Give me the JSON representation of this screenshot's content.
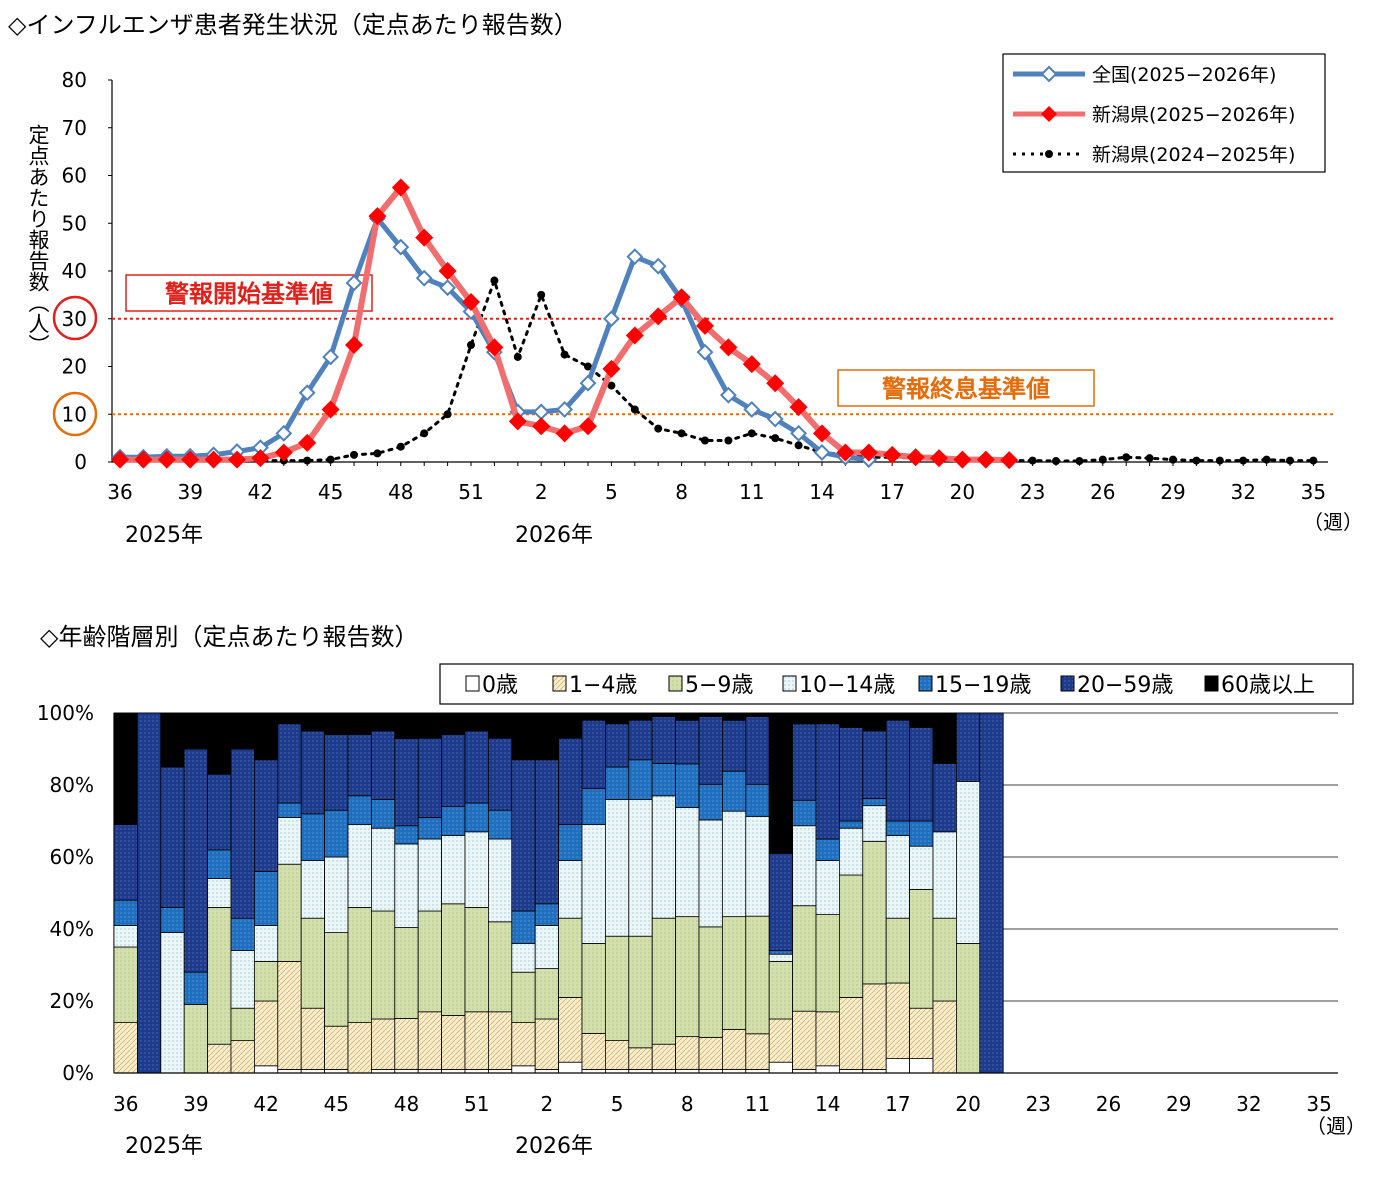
{
  "chart1": {
    "title": "◇インフルエンザ患者発生状況（定点あたり報告数）",
    "ylabel": "定点あたり報告数（人）",
    "y_ticks": [
      "0",
      "10",
      "20",
      "30",
      "40",
      "50",
      "60",
      "70",
      "80"
    ],
    "ylim": [
      0,
      80
    ],
    "x_tick_labels": [
      "36",
      "39",
      "42",
      "45",
      "48",
      "51",
      "2",
      "5",
      "8",
      "11",
      "14",
      "17",
      "20",
      "23",
      "26",
      "29",
      "32",
      "35"
    ],
    "x_unit": "（週）",
    "year_labels": [
      "2025年",
      "2026年"
    ],
    "alarm_start_label": "警報開始基準値",
    "alarm_end_label": "警報終息基準値",
    "alarm_start_value": 30,
    "alarm_end_value": 10,
    "colors": {
      "national": "#4f81bd",
      "niigata": "#f26d6d",
      "niigata_marker": "#ff0000",
      "prev": "#000000",
      "alarm_start": "#e0201b",
      "alarm_end": "#e46c0a"
    }
  },
  "chart1_data": {
    "type": "line",
    "x_weeks": [
      "36",
      "37",
      "38",
      "39",
      "40",
      "41",
      "42",
      "43",
      "44",
      "45",
      "46",
      "47",
      "48",
      "49",
      "50",
      "51",
      "52",
      "1",
      "2",
      "3",
      "4",
      "5",
      "6",
      "7",
      "8",
      "9",
      "10",
      "11",
      "12",
      "13",
      "14",
      "15",
      "16",
      "17",
      "18",
      "19",
      "20",
      "21",
      "22",
      "23",
      "24",
      "25",
      "26",
      "27",
      "28",
      "29",
      "30",
      "31",
      "32",
      "33",
      "34",
      "35"
    ],
    "series": [
      {
        "name": "全国(2025−2026年)",
        "values": [
          1.0,
          1.0,
          1.2,
          1.2,
          1.5,
          2.2,
          3.0,
          6.0,
          14.5,
          22.0,
          37.5,
          51.0,
          45.0,
          38.5,
          36.5,
          31.5,
          23.0,
          10.5,
          10.5,
          11.0,
          16.5,
          30.0,
          43.0,
          41.0,
          34.0,
          23.0,
          14.0,
          11.0,
          9.0,
          6.0,
          2.0,
          1.0,
          0.5,
          null,
          null,
          null,
          null,
          null,
          null,
          null,
          null,
          null,
          null,
          null,
          null,
          null,
          null,
          null,
          null,
          null,
          null,
          null
        ]
      },
      {
        "name": "新潟県(2025−2026年)",
        "values": [
          0.5,
          0.5,
          0.5,
          0.5,
          0.5,
          0.5,
          0.8,
          2.0,
          4.0,
          11.0,
          24.5,
          51.5,
          57.5,
          47.0,
          40.0,
          33.5,
          24.0,
          8.5,
          7.5,
          6.0,
          7.5,
          19.5,
          26.5,
          30.5,
          34.5,
          28.5,
          24.0,
          20.5,
          16.5,
          11.5,
          6.0,
          2.0,
          2.0,
          1.5,
          1.0,
          0.8,
          0.5,
          0.5,
          0.4,
          null,
          null,
          null,
          null,
          null,
          null,
          null,
          null,
          null,
          null,
          null,
          null,
          null
        ]
      },
      {
        "name": "新潟県(2024−2025年)",
        "values": [
          0.3,
          0.3,
          0.3,
          0.3,
          0.3,
          0.3,
          0.3,
          0.3,
          0.3,
          0.5,
          1.5,
          1.8,
          3.2,
          6.0,
          10.0,
          24.5,
          38.0,
          22.0,
          35.0,
          22.5,
          20.0,
          16.0,
          11.0,
          7.0,
          6.0,
          4.5,
          4.5,
          6.0,
          5.0,
          3.5,
          2.0,
          1.5,
          1.0,
          1.0,
          0.8,
          0.8,
          0.5,
          0.5,
          0.3,
          0.3,
          0.2,
          0.2,
          0.5,
          1.0,
          0.8,
          0.5,
          0.3,
          0.3,
          0.3,
          0.5,
          0.3,
          0.3
        ]
      }
    ]
  },
  "chart2": {
    "title": "◇年齢階層別（定点あたり報告数）",
    "y_ticks": [
      "0%",
      "20%",
      "40%",
      "60%",
      "80%",
      "100%"
    ],
    "x_tick_labels": [
      "36",
      "39",
      "42",
      "45",
      "48",
      "51",
      "2",
      "5",
      "8",
      "11",
      "14",
      "17",
      "20",
      "23",
      "26",
      "29",
      "32",
      "35"
    ],
    "x_unit": "（週）",
    "year_labels": [
      "2025年",
      "2026年"
    ]
  },
  "chart2_data": {
    "type": "bar",
    "stacked": "percent",
    "categories": [
      "36",
      "37",
      "38",
      "39",
      "40",
      "41",
      "42",
      "43",
      "44",
      "45",
      "46",
      "47",
      "48",
      "49",
      "50",
      "51",
      "52",
      "1",
      "2",
      "3",
      "4",
      "5",
      "6",
      "7",
      "8",
      "9",
      "10",
      "11",
      "12",
      "13",
      "14",
      "15",
      "16",
      "17",
      "18",
      "19",
      "20",
      "21",
      "22",
      "23",
      "24",
      "25",
      "26",
      "27",
      "28",
      "29",
      "30",
      "31",
      "32",
      "33",
      "34",
      "35"
    ],
    "ylim": [
      0,
      100
    ],
    "series": [
      {
        "name": "0歳",
        "color": "#ffffff",
        "values": [
          0,
          0,
          0,
          0,
          0,
          0,
          2,
          1,
          1,
          1,
          0,
          1,
          1,
          1,
          1,
          1,
          1,
          2,
          1,
          3,
          1,
          1,
          1,
          1,
          1,
          1,
          1,
          1,
          3,
          1,
          2,
          1,
          1,
          4,
          4,
          0,
          0,
          0
        ]
      },
      {
        "name": "1−4歳",
        "color": "#fbeecb",
        "values": [
          14,
          0,
          0,
          0,
          8,
          9,
          18,
          30,
          17,
          12,
          14,
          14,
          14,
          16,
          15,
          16,
          16,
          12,
          14,
          18,
          10,
          8,
          6,
          7,
          9,
          9,
          11,
          10,
          12,
          16,
          15,
          20,
          24,
          21,
          14,
          20,
          0,
          0
        ]
      },
      {
        "name": "5−9歳",
        "color": "#d6e3b3",
        "values": [
          21,
          0,
          0,
          19,
          38,
          9,
          11,
          27,
          25,
          26,
          32,
          30,
          25,
          28,
          31,
          29,
          25,
          14,
          14,
          22,
          25,
          29,
          31,
          35,
          33,
          31,
          31,
          33,
          16,
          29,
          27,
          34,
          40,
          18,
          33,
          23,
          36,
          0
        ]
      },
      {
        "name": "10−14歳",
        "color": "#e6f4f5",
        "values": [
          6,
          0,
          39,
          0,
          8,
          16,
          10,
          13,
          16,
          21,
          23,
          23,
          23,
          20,
          19,
          21,
          23,
          8,
          12,
          16,
          33,
          38,
          38,
          34,
          30,
          30,
          29,
          28,
          2,
          22,
          15,
          13,
          10,
          23,
          12,
          24,
          45,
          0
        ]
      },
      {
        "name": "15−19歳",
        "color": "#1f6fbe",
        "values": [
          7,
          0,
          7,
          9,
          8,
          9,
          15,
          4,
          13,
          13,
          8,
          8,
          5,
          6,
          8,
          8,
          8,
          9,
          6,
          10,
          10,
          9,
          11,
          9,
          12,
          10,
          11,
          9,
          1,
          7,
          6,
          2,
          2,
          4,
          7,
          0,
          0,
          0
        ]
      },
      {
        "name": "20−59歳",
        "color": "#1f3f8f",
        "values": [
          21,
          100,
          39,
          62,
          21,
          47,
          31,
          22,
          23,
          21,
          17,
          19,
          24,
          22,
          20,
          20,
          20,
          42,
          40,
          24,
          19,
          12,
          11,
          13,
          12,
          19,
          14,
          19,
          27,
          21,
          32,
          26,
          19,
          28,
          26,
          19,
          19,
          100
        ]
      },
      {
        "name": "60歳以上",
        "color": "#000000",
        "values": [
          31,
          0,
          15,
          10,
          17,
          10,
          13,
          3,
          5,
          6,
          6,
          5,
          7,
          7,
          6,
          5,
          7,
          13,
          13,
          7,
          2,
          3,
          2,
          1,
          2,
          1,
          2,
          1,
          39,
          3,
          3,
          4,
          5,
          2,
          4,
          14,
          0,
          0
        ]
      }
    ]
  }
}
